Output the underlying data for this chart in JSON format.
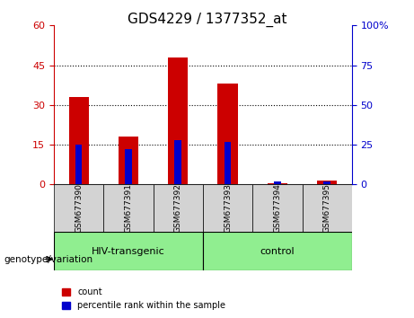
{
  "title": "GDS4229 / 1377352_at",
  "categories": [
    "GSM677390",
    "GSM677391",
    "GSM677392",
    "GSM677393",
    "GSM677394",
    "GSM677395"
  ],
  "count_values": [
    33,
    18,
    48,
    38,
    0.5,
    1.5
  ],
  "percentile_values": [
    25,
    22,
    28,
    27,
    2,
    2
  ],
  "ylim_left": [
    0,
    60
  ],
  "ylim_right": [
    0,
    100
  ],
  "yticks_left": [
    0,
    15,
    30,
    45,
    60
  ],
  "ytick_labels_left": [
    "0",
    "15",
    "30",
    "45",
    "60"
  ],
  "yticks_right": [
    0,
    25,
    50,
    75,
    100
  ],
  "ytick_labels_right": [
    "0",
    "25",
    "50",
    "75",
    "100%"
  ],
  "bar_color": "#cc0000",
  "percentile_color": "#0000cc",
  "bar_width": 0.4,
  "groups": [
    {
      "label": "HIV-transgenic",
      "indices": [
        0,
        1,
        2
      ],
      "color": "#90ee90"
    },
    {
      "label": "control",
      "indices": [
        3,
        4,
        5
      ],
      "color": "#90ee90"
    }
  ],
  "group_border_color": "#000000",
  "tick_bg_color": "#cccccc",
  "legend_count_label": "count",
  "legend_percentile_label": "percentile rank within the sample",
  "genotype_label": "genotype/variation",
  "plot_bg_color": "#ffffff",
  "tick_region_color": "#d3d3d3",
  "grid_color": "#000000",
  "left_axis_color": "#cc0000",
  "right_axis_color": "#0000cc"
}
